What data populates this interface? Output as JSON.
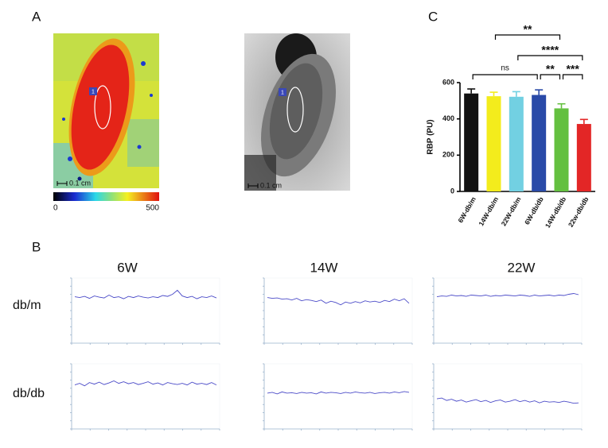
{
  "panel_labels": [
    "A",
    "B",
    "C"
  ],
  "panel_a": {
    "scale_bar": "0.1 cm",
    "roi_label": "1",
    "colorbar_ticks": [
      0,
      500
    ]
  },
  "panel_b": {
    "columns": [
      "6W",
      "14W",
      "22W"
    ],
    "rows": [
      "db/m",
      "db/db"
    ]
  },
  "chart_data": [
    {
      "type": "bar",
      "y_label": "RBP (PU)",
      "categories": [
        "6W-db/m",
        "14W-db/m",
        "22W-db/m",
        "6W-db/db",
        "14W-db/db",
        "22w-db/db"
      ],
      "values": [
        540,
        525,
        522,
        532,
        458,
        372
      ],
      "errors": [
        25,
        22,
        28,
        28,
        25,
        25
      ],
      "colors": [
        "#111111",
        "#f3ec1c",
        "#72d0e2",
        "#2a4aa8",
        "#64c040",
        "#e32626"
      ],
      "ylim": [
        0,
        600
      ],
      "yticks": [
        0,
        200,
        400,
        600
      ],
      "significance": [
        {
          "label": "**",
          "between": [
            "14W-db/m",
            "14W-db/db"
          ]
        },
        {
          "label": "****",
          "between": [
            "22W-db/m",
            "22w-db/db"
          ]
        },
        {
          "label": "ns",
          "between": [
            "6W-db/m",
            "6W-db/db"
          ]
        },
        {
          "label": "**",
          "between": [
            "6W-db/db",
            "14W-db/db"
          ]
        },
        {
          "label": "***",
          "between": [
            "14W-db/db",
            "22w-db/db"
          ]
        }
      ]
    },
    {
      "type": "line",
      "color": "#4b4bc8",
      "ylim": [
        0,
        800
      ],
      "values": [
        570,
        560,
        575,
        550,
        580,
        565,
        555,
        590,
        560,
        570,
        545,
        575,
        560,
        580,
        565,
        555,
        570,
        560,
        585,
        575,
        600,
        650,
        580,
        560,
        575,
        545,
        570,
        560,
        580,
        555
      ]
    },
    {
      "type": "line",
      "color": "#4b4bc8",
      "ylim": [
        0,
        800
      ],
      "values": [
        560,
        550,
        555,
        540,
        545,
        530,
        550,
        520,
        535,
        525,
        510,
        530,
        490,
        515,
        500,
        470,
        505,
        490,
        510,
        495,
        520,
        505,
        515,
        500,
        525,
        510,
        540,
        520,
        545,
        490
      ]
    },
    {
      "type": "line",
      "color": "#4b4bc8",
      "ylim": [
        0,
        800
      ],
      "values": [
        570,
        580,
        575,
        590,
        580,
        585,
        575,
        590,
        585,
        580,
        590,
        575,
        585,
        580,
        590,
        585,
        580,
        590,
        585,
        575,
        590,
        580,
        585,
        590,
        580,
        590,
        585,
        600,
        610,
        595
      ]
    },
    {
      "type": "line",
      "color": "#4b4bc8",
      "ylim": [
        0,
        800
      ],
      "values": [
        540,
        560,
        530,
        570,
        550,
        575,
        545,
        565,
        590,
        560,
        580,
        555,
        570,
        545,
        560,
        580,
        550,
        565,
        540,
        570,
        555,
        545,
        560,
        540,
        575,
        550,
        560,
        545,
        570,
        540
      ]
    },
    {
      "type": "line",
      "color": "#4b4bc8",
      "ylim": [
        0,
        800
      ],
      "values": [
        440,
        450,
        430,
        455,
        440,
        445,
        435,
        450,
        440,
        445,
        430,
        455,
        440,
        450,
        445,
        435,
        450,
        440,
        455,
        445,
        440,
        450,
        435,
        445,
        450,
        440,
        455,
        445,
        460,
        450
      ]
    },
    {
      "type": "line",
      "color": "#4b4bc8",
      "ylim": [
        0,
        800
      ],
      "values": [
        370,
        380,
        350,
        365,
        340,
        355,
        330,
        345,
        360,
        335,
        350,
        325,
        345,
        355,
        330,
        340,
        360,
        335,
        350,
        330,
        345,
        320,
        340,
        330,
        335,
        325,
        340,
        330,
        315,
        320
      ]
    }
  ]
}
